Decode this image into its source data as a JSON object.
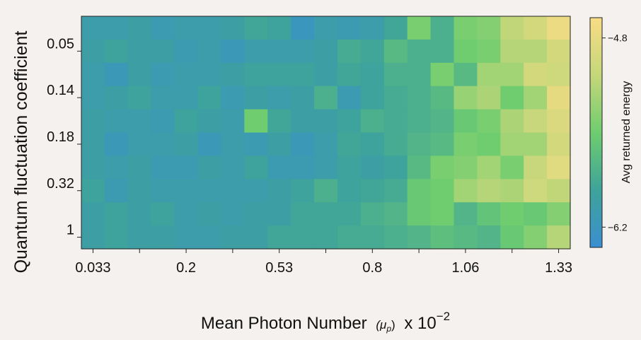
{
  "chart_data": {
    "type": "heatmap",
    "xlabel": "Mean Photon Number",
    "xlabel_symbol": "(μ",
    "xlabel_symbol_sub": "p",
    "xlabel_symbol_close": ")",
    "xlabel_mult": "x 10",
    "xlabel_exponent": "−2",
    "ylabel": "Quantum fluctuation coefficient",
    "colorbar_label": "Avg returned energy",
    "x_tick_labels": [
      "0.033",
      "0.2",
      "0.53",
      "0.8",
      "1.06",
      "1.33"
    ],
    "y_tick_labels": [
      "0.05",
      "0.14",
      "0.18",
      "0.32",
      "1"
    ],
    "colorbar_ticks": [
      "−4.8",
      "−6.2"
    ],
    "colorbar_range": [
      -6.35,
      -4.65
    ],
    "colormap": [
      "#3a8fd0",
      "#3ea39a",
      "#6fcd6f",
      "#c5d77a",
      "#f8dc85"
    ],
    "n_rows": 10,
    "n_cols": 21,
    "values": [
      [
        -6.05,
        -6.05,
        -6.0,
        -6.1,
        -6.05,
        -6.05,
        -6.0,
        -5.9,
        -5.95,
        -6.2,
        -6.05,
        -6.1,
        -6.05,
        -5.9,
        -5.45,
        -5.8,
        -5.45,
        -5.4,
        -5.1,
        -4.95,
        -4.75
      ],
      [
        -6.0,
        -5.95,
        -6.0,
        -6.0,
        -6.1,
        -6.05,
        -6.15,
        -6.05,
        -6.05,
        -6.05,
        -6.0,
        -5.85,
        -5.9,
        -5.7,
        -5.8,
        -5.8,
        -5.5,
        -5.45,
        -5.15,
        -5.15,
        -4.95
      ],
      [
        -6.05,
        -6.15,
        -6.0,
        -6.1,
        -6.05,
        -6.05,
        -6.0,
        -5.95,
        -5.95,
        -5.95,
        -6.0,
        -5.9,
        -5.95,
        -5.8,
        -5.8,
        -5.45,
        -5.7,
        -5.25,
        -5.25,
        -4.95,
        -5.0
      ],
      [
        -6.05,
        -6.0,
        -5.95,
        -6.05,
        -6.05,
        -5.95,
        -6.1,
        -6.0,
        -6.05,
        -6.0,
        -5.8,
        -6.1,
        -5.95,
        -5.85,
        -5.8,
        -5.7,
        -5.3,
        -5.2,
        -5.5,
        -5.25,
        -4.8
      ],
      [
        -6.0,
        -6.05,
        -6.05,
        -6.1,
        -5.95,
        -6.0,
        -6.05,
        -5.5,
        -5.9,
        -6.0,
        -6.0,
        -5.95,
        -5.8,
        -5.85,
        -5.8,
        -5.75,
        -5.55,
        -5.45,
        -5.2,
        -5.05,
        -4.9
      ],
      [
        -6.0,
        -6.15,
        -6.05,
        -6.05,
        -6.0,
        -6.15,
        -6.05,
        -6.1,
        -6.0,
        -6.15,
        -6.05,
        -5.9,
        -5.95,
        -5.85,
        -5.75,
        -5.7,
        -5.45,
        -5.5,
        -5.25,
        -5.25,
        -4.95
      ],
      [
        -6.0,
        -6.05,
        -6.0,
        -6.1,
        -6.1,
        -6.0,
        -6.05,
        -5.95,
        -6.1,
        -6.1,
        -6.05,
        -5.95,
        -6.0,
        -5.95,
        -5.7,
        -5.45,
        -5.4,
        -5.25,
        -5.45,
        -5.05,
        -4.85
      ],
      [
        -5.95,
        -6.1,
        -6.0,
        -6.05,
        -6.05,
        -6.05,
        -6.05,
        -6.05,
        -6.0,
        -5.95,
        -5.8,
        -5.95,
        -5.9,
        -5.85,
        -5.55,
        -5.5,
        -5.25,
        -5.15,
        -5.2,
        -5.0,
        -5.1
      ],
      [
        -6.0,
        -5.95,
        -6.0,
        -5.95,
        -6.05,
        -6.0,
        -6.05,
        -6.0,
        -6.0,
        -5.9,
        -5.9,
        -5.9,
        -5.8,
        -5.75,
        -5.55,
        -5.5,
        -5.75,
        -5.6,
        -5.5,
        -5.55,
        -5.4
      ],
      [
        -6.0,
        -5.95,
        -6.0,
        -6.0,
        -6.05,
        -6.05,
        -6.0,
        -6.0,
        -5.9,
        -5.9,
        -5.9,
        -5.85,
        -5.85,
        -5.8,
        -5.75,
        -5.65,
        -5.7,
        -5.75,
        -5.55,
        -5.4,
        -5.15
      ]
    ]
  }
}
